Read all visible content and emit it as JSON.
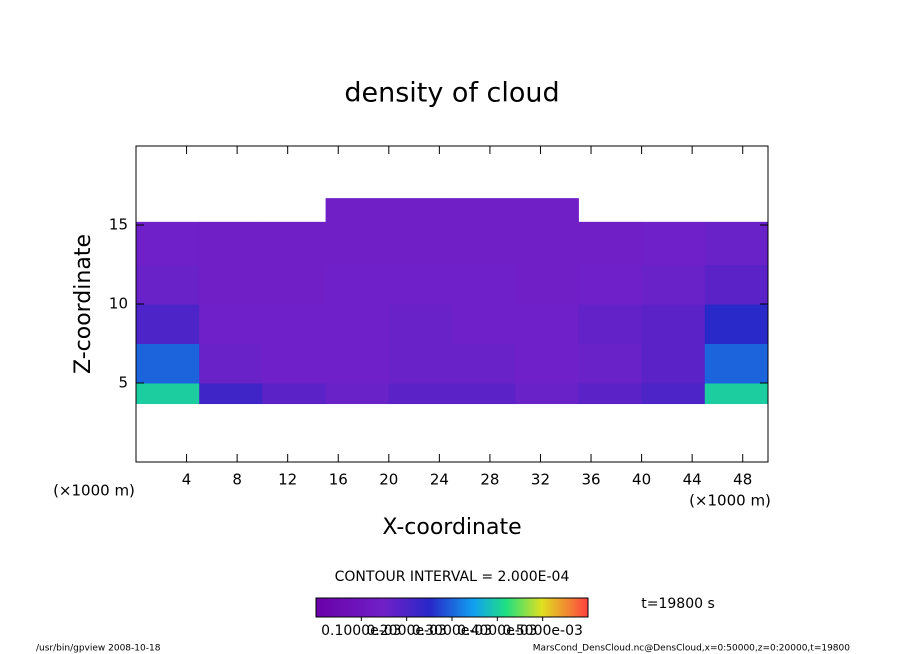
{
  "chart_data": {
    "type": "contour",
    "title": "density of cloud",
    "xlabel": "X-coordinate",
    "ylabel": "Z-coordinate",
    "xunit": "(×1000 m)",
    "yunit": "(×1000 m)",
    "contour_note": "CONTOUR INTERVAL = 2.000E-04",
    "time_note": "t=19800 s",
    "footer_left": "/usr/bin/gpview  2008-10-18",
    "footer_right": "MarsCond_DensCloud.nc@DensCloud,x=0:50000,z=0:20000,t=19800",
    "xlim": [
      0,
      50
    ],
    "ylim": [
      0,
      20
    ],
    "xticks": [
      4,
      8,
      12,
      16,
      20,
      24,
      28,
      32,
      36,
      40,
      44,
      48
    ],
    "yticks": [
      5,
      10,
      15
    ],
    "xbins": [
      0,
      5,
      10,
      15,
      20,
      25,
      30,
      35,
      40,
      45,
      50
    ],
    "ybins": [
      3.7,
      5,
      7.5,
      10,
      12.5,
      15.2,
      16.7
    ],
    "values": [
      [
        0.0004,
        0.00022,
        0.00018,
        0.00016,
        0.00018,
        0.00018,
        0.00016,
        0.00018,
        0.0002,
        0.0004
      ],
      [
        0.0003,
        0.00016,
        0.00015,
        0.00015,
        0.00016,
        0.00016,
        0.00015,
        0.00016,
        0.00018,
        0.0003
      ],
      [
        0.0002,
        0.00015,
        0.00015,
        0.00015,
        0.00016,
        0.00015,
        0.00015,
        0.00017,
        0.00018,
        0.00025
      ],
      [
        0.00016,
        0.00014,
        0.00014,
        0.00015,
        0.00015,
        0.00015,
        0.00014,
        0.00015,
        0.00016,
        0.00018
      ],
      [
        0.00015,
        0.00014,
        0.00014,
        0.00014,
        0.00014,
        0.00014,
        0.00014,
        0.00014,
        0.00015,
        0.00016
      ],
      [
        null,
        null,
        null,
        0.00014,
        0.00014,
        0.00014,
        0.00014,
        null,
        null,
        null
      ]
    ],
    "clim": [
      0,
      0.0006
    ],
    "cticks": [
      {
        "value": 0.0001,
        "label": "0.1000e-03"
      },
      {
        "value": 0.0002,
        "label": "0.2000e-03"
      },
      {
        "value": 0.0003,
        "label": "0.3000e-03"
      },
      {
        "value": 0.0004,
        "label": "0.4000e-03"
      },
      {
        "value": 0.0005,
        "label": "0.5000e-03"
      }
    ]
  }
}
